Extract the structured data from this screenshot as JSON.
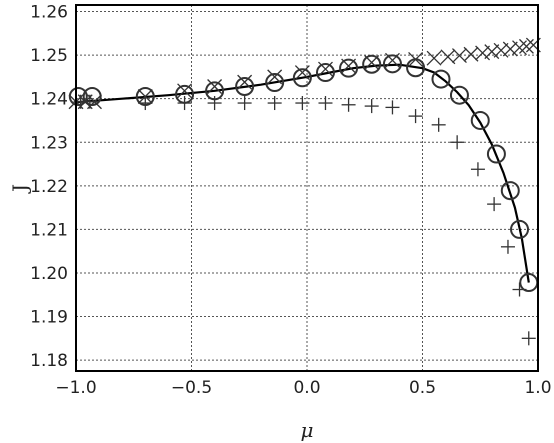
{
  "chart_data": {
    "type": "scatter",
    "xlabel": "μ",
    "ylabel": "J",
    "xlim": [
      -1.0,
      1.0
    ],
    "ylim": [
      1.1775,
      1.2615
    ],
    "xticks": [
      -1.0,
      -0.5,
      0.0,
      0.5,
      1.0
    ],
    "xtick_labels": [
      "−1.0",
      "−0.5",
      "0.0",
      "0.5",
      "1.0"
    ],
    "yticks": [
      1.18,
      1.19,
      1.2,
      1.21,
      1.22,
      1.23,
      1.24,
      1.25,
      1.26
    ],
    "ytick_labels": [
      "1.18",
      "1.19",
      "1.20",
      "1.21",
      "1.22",
      "1.23",
      "1.24",
      "1.25",
      "1.26"
    ],
    "grid": true,
    "colors": {
      "marker": "#333333",
      "line": "#000000",
      "grid": "#555555"
    },
    "series": [
      {
        "marker": "circle",
        "x": [
          -0.99,
          -0.93,
          -0.7,
          -0.53,
          -0.4,
          -0.27,
          -0.14,
          -0.02,
          0.08,
          0.18,
          0.28,
          0.37,
          0.47,
          0.58,
          0.66,
          0.75,
          0.82,
          0.88,
          0.92,
          0.96
        ],
        "y": [
          1.2405,
          1.2405,
          1.2405,
          1.241,
          1.2418,
          1.2428,
          1.2437,
          1.2448,
          1.246,
          1.247,
          1.2479,
          1.248,
          1.2471,
          1.2445,
          1.2408,
          1.235,
          1.2273,
          1.2189,
          1.21,
          1.1978
        ]
      },
      {
        "marker": "x",
        "x": [
          -1.0,
          -0.96,
          -0.92,
          -0.7,
          -0.53,
          -0.4,
          -0.27,
          -0.14,
          -0.02,
          0.08,
          0.18,
          0.28,
          0.37,
          0.47,
          0.55,
          0.61,
          0.66,
          0.71,
          0.76,
          0.8,
          0.84,
          0.88,
          0.92,
          0.95,
          0.98
        ],
        "y": [
          1.2393,
          1.2393,
          1.2393,
          1.2405,
          1.2418,
          1.2428,
          1.2438,
          1.245,
          1.246,
          1.2468,
          1.2475,
          1.2483,
          1.2488,
          1.249,
          1.2493,
          1.2496,
          1.2499,
          1.2502,
          1.2505,
          1.2508,
          1.2511,
          1.2514,
          1.2517,
          1.252,
          1.2523
        ]
      },
      {
        "marker": "plus",
        "x": [
          -0.98,
          -0.94,
          -0.7,
          -0.53,
          -0.4,
          -0.27,
          -0.14,
          -0.02,
          0.08,
          0.18,
          0.28,
          0.37,
          0.47,
          0.57,
          0.65,
          0.74,
          0.81,
          0.87,
          0.92,
          0.96
        ],
        "y": [
          1.2393,
          1.2393,
          1.239,
          1.239,
          1.239,
          1.239,
          1.239,
          1.239,
          1.239,
          1.2386,
          1.2383,
          1.238,
          1.236,
          1.234,
          1.23,
          1.2238,
          1.2158,
          1.206,
          1.1962,
          1.185
        ]
      },
      {
        "marker": "line",
        "x": [
          -1.0,
          -0.8,
          -0.6,
          -0.4,
          -0.2,
          0.0,
          0.1,
          0.2,
          0.3,
          0.4,
          0.5,
          0.55,
          0.6,
          0.65,
          0.7,
          0.75,
          0.8,
          0.85,
          0.9,
          0.93,
          0.96
        ],
        "y": [
          1.2392,
          1.24,
          1.2408,
          1.2418,
          1.2432,
          1.245,
          1.246,
          1.247,
          1.2476,
          1.2478,
          1.247,
          1.246,
          1.244,
          1.2415,
          1.2385,
          1.2345,
          1.2295,
          1.223,
          1.215,
          1.208,
          1.1978
        ]
      }
    ]
  }
}
